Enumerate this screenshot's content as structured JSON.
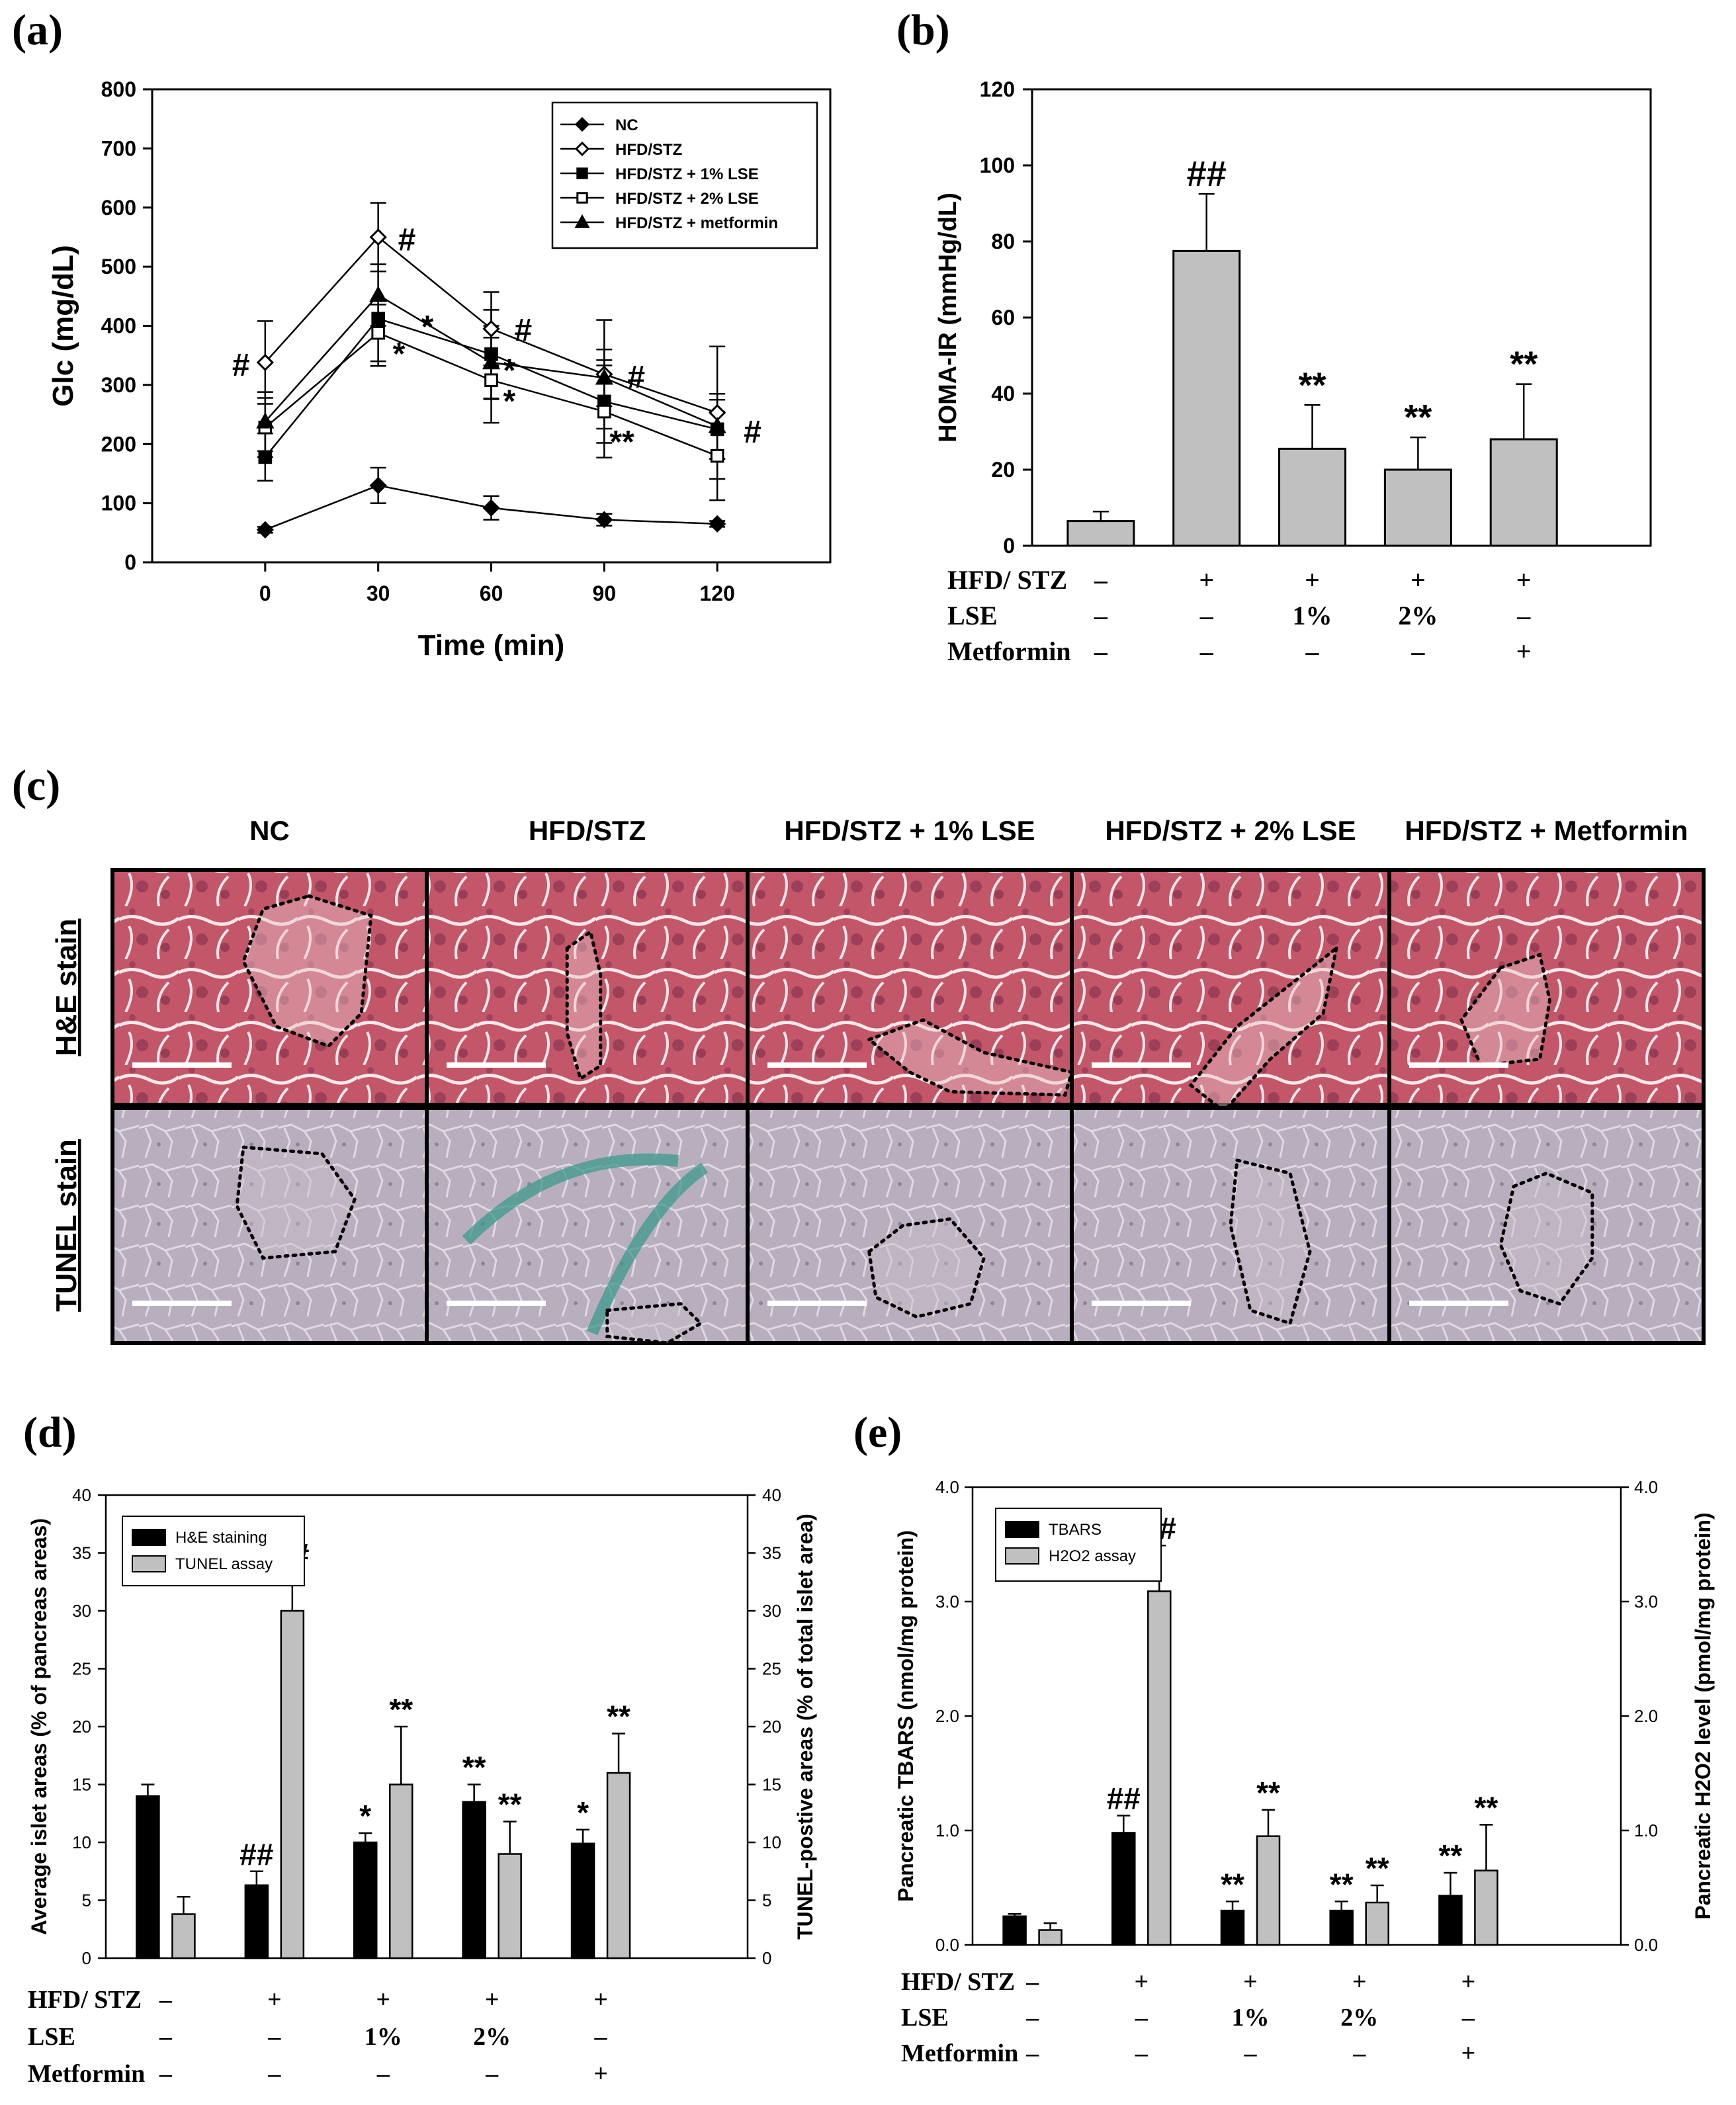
{
  "panels": {
    "a": "(a)",
    "b": "(b)",
    "c": "(c)",
    "d": "(d)",
    "e": "(e)"
  },
  "chart_data": [
    {
      "id": "a",
      "type": "line",
      "title": "",
      "xlabel": "Time (min)",
      "ylabel": "Glc (mg/dL)",
      "x": [
        0,
        30,
        60,
        90,
        120
      ],
      "xlim": [
        -30,
        150
      ],
      "ylim": [
        0,
        800
      ],
      "yticks": [
        0,
        100,
        200,
        300,
        400,
        500,
        600,
        700,
        800
      ],
      "xticks": [
        0,
        30,
        60,
        90,
        120
      ],
      "legend": "top-right",
      "series": [
        {
          "name": "NC",
          "marker": "filled-diamond",
          "values": [
            55,
            130,
            92,
            72,
            65
          ],
          "errors": [
            5,
            30,
            20,
            10,
            5
          ]
        },
        {
          "name": "HFD/STZ",
          "marker": "open-diamond",
          "values": [
            338,
            550,
            395,
            318,
            253
          ],
          "errors": [
            70,
            58,
            62,
            92,
            112
          ]
        },
        {
          "name": "HFD/STZ + 1% LSE",
          "marker": "filled-square",
          "values": [
            178,
            412,
            352,
            272,
            225
          ],
          "errors": [
            40,
            80,
            75,
            70,
            50
          ]
        },
        {
          "name": "HFD/STZ + 2% LSE",
          "marker": "open-square",
          "values": [
            228,
            388,
            308,
            255,
            180
          ],
          "errors": [
            50,
            48,
            72,
            78,
            75
          ]
        },
        {
          "name": "HFD/STZ + metformin",
          "marker": "filled-triangle",
          "values": [
            238,
            452,
            338,
            312,
            230
          ],
          "errors": [
            50,
            52,
            62,
            48,
            55
          ]
        }
      ],
      "annotations": [
        {
          "x": 0,
          "text": "#"
        },
        {
          "x": 30,
          "text": "#"
        },
        {
          "x": 60,
          "text": "#"
        },
        {
          "x": 90,
          "text": "#"
        },
        {
          "x": 120,
          "text": "#"
        },
        {
          "x": 30,
          "text": "*"
        },
        {
          "x": 30,
          "text": "*"
        },
        {
          "x": 60,
          "text": "*"
        },
        {
          "x": 60,
          "text": "*"
        },
        {
          "x": 90,
          "text": "**"
        }
      ]
    },
    {
      "id": "b",
      "type": "bar",
      "ylabel": "HOMA-IR (mmHg/dL)",
      "ylim": [
        0,
        120
      ],
      "yticks": [
        0,
        20,
        40,
        60,
        80,
        100,
        120
      ],
      "values": [
        6.5,
        77.5,
        25.5,
        20,
        28
      ],
      "errors": [
        2.5,
        15,
        11.5,
        8.5,
        14.5
      ],
      "annotations": [
        "",
        "##",
        "**",
        "**",
        "**"
      ],
      "table": {
        "row_labels": [
          "HFD/ STZ",
          "LSE",
          "Metformin"
        ],
        "rows": [
          [
            "–",
            "+",
            "+",
            "+",
            "+"
          ],
          [
            "–",
            "–",
            "1%",
            "2%",
            "–"
          ],
          [
            "–",
            "–",
            "–",
            "–",
            "+"
          ]
        ]
      }
    },
    {
      "id": "d",
      "type": "bar",
      "ylabel": "Average islet areas (% of pancreas areas)",
      "y2label": "TUNEL-postive areas (% of total islet area)",
      "ylim": [
        0,
        40
      ],
      "yticks": [
        0,
        5,
        10,
        15,
        20,
        25,
        30,
        35,
        40
      ],
      "legend": "top-left",
      "series": [
        {
          "name": "H&E staining",
          "color": "#000000",
          "values": [
            14,
            6.3,
            10,
            13.5,
            9.9
          ],
          "errors": [
            1,
            1.2,
            0.8,
            1.5,
            1.2
          ],
          "annotations": [
            "",
            "##",
            "*",
            "**",
            "*"
          ]
        },
        {
          "name": "TUNEL assay",
          "color": "#c0c0c0",
          "values": [
            3.8,
            30,
            15,
            9,
            16
          ],
          "errors": [
            1.5,
            3.4,
            5,
            2.8,
            3.4
          ],
          "annotations": [
            "",
            "##",
            "**",
            "**",
            "**"
          ]
        }
      ],
      "table": {
        "row_labels": [
          "HFD/ STZ",
          "LSE",
          "Metformin"
        ],
        "rows": [
          [
            "–",
            "+",
            "+",
            "+",
            "+"
          ],
          [
            "–",
            "–",
            "1%",
            "2%",
            "–"
          ],
          [
            "–",
            "–",
            "–",
            "–",
            "+"
          ]
        ]
      }
    },
    {
      "id": "e",
      "type": "bar",
      "ylabel": "Pancreatic TBARS (nmol/mg protein)",
      "y2label": "Pancreatic H2O2 level (pmol/mg protein)",
      "ylim": [
        0,
        4
      ],
      "yticks": [
        "0.0",
        "1.0",
        "2.0",
        "3.0",
        "4.0"
      ],
      "legend": "top-left",
      "series": [
        {
          "name": "TBARS",
          "color": "#000000",
          "values": [
            0.25,
            0.98,
            0.3,
            0.3,
            0.43
          ],
          "errors": [
            0.02,
            0.15,
            0.08,
            0.08,
            0.2
          ],
          "annotations": [
            "",
            "##",
            "**",
            "**",
            "**"
          ]
        },
        {
          "name": "H2O2 assay",
          "color": "#c0c0c0",
          "values": [
            0.13,
            3.09,
            0.95,
            0.37,
            0.65
          ],
          "errors": [
            0.06,
            0.4,
            0.23,
            0.15,
            0.4
          ],
          "annotations": [
            "",
            "##",
            "**",
            "**",
            "**"
          ]
        }
      ],
      "table": {
        "row_labels": [
          "HFD/ STZ",
          "LSE",
          "Metformin"
        ],
        "rows": [
          [
            "–",
            "+",
            "+",
            "+",
            "+"
          ],
          [
            "–",
            "–",
            "1%",
            "2%",
            "–"
          ],
          [
            "–",
            "–",
            "–",
            "–",
            "+"
          ]
        ]
      }
    }
  ],
  "micrographs": {
    "columns": [
      "NC",
      "HFD/STZ",
      "HFD/STZ + 1% LSE",
      "HFD/STZ + 2% LSE",
      "HFD/STZ + Metformin"
    ],
    "rows": [
      "H&E stain",
      "TUNEL stain"
    ]
  }
}
